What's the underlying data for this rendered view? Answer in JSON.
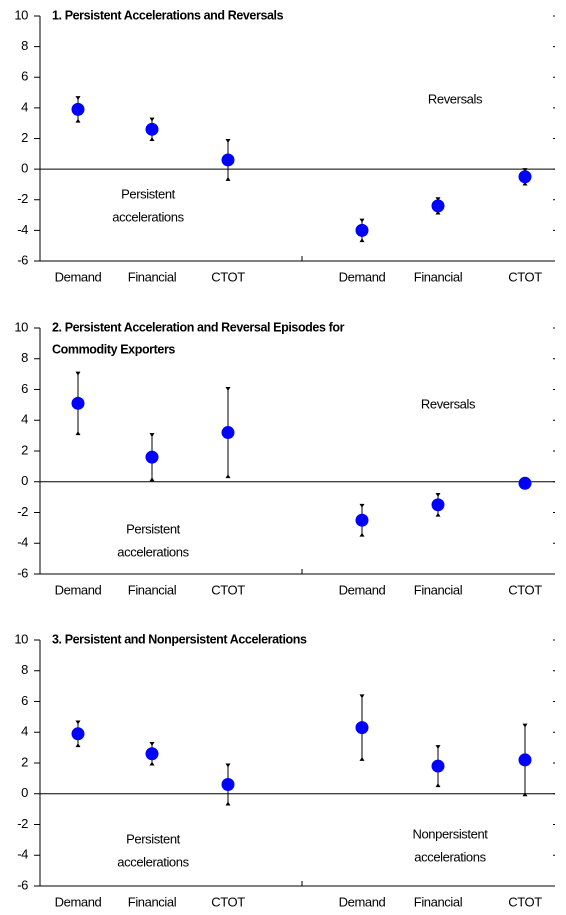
{
  "chart_data": [
    {
      "type": "errorbar",
      "title": [
        "1. Persistent Accelerations and Reversals"
      ],
      "categories": [
        "Demand",
        "Financial",
        "CTOT",
        "Demand",
        "Financial",
        "CTOT"
      ],
      "values": [
        3.9,
        2.6,
        0.6,
        -4.0,
        -2.4,
        -0.5
      ],
      "errors": [
        0.8,
        0.7,
        1.3,
        0.7,
        0.5,
        0.5
      ],
      "color": "#0000ff",
      "ylim": [
        -6,
        10
      ],
      "yticks": [
        -6,
        -4,
        -2,
        0,
        2,
        4,
        6,
        8,
        10
      ],
      "annotations": [
        [
          "Reversals"
        ],
        [
          "Persistent",
          "accelerations"
        ]
      ]
    },
    {
      "type": "errorbar",
      "title": [
        "2. Persistent Acceleration and Reversal Episodes for",
        "Commodity Exporters"
      ],
      "categories": [
        "Demand",
        "Financial",
        "CTOT",
        "Demand",
        "Financial",
        "CTOT"
      ],
      "values": [
        5.1,
        1.6,
        3.2,
        -2.5,
        -1.5,
        -0.1
      ],
      "errors": [
        2.0,
        1.5,
        2.9,
        1.0,
        0.7,
        0.1
      ],
      "color": "#0000ff",
      "ylim": [
        -6,
        10
      ],
      "yticks": [
        -6,
        -4,
        -2,
        0,
        2,
        4,
        6,
        8,
        10
      ],
      "annotations": [
        [
          "Reversals"
        ],
        [
          "Persistent",
          "accelerations"
        ]
      ]
    },
    {
      "type": "errorbar",
      "title": [
        "3. Persistent and Nonpersistent Accelerations"
      ],
      "categories": [
        "Demand",
        "Financial",
        "CTOT",
        "Demand",
        "Financial",
        "CTOT"
      ],
      "values": [
        3.9,
        2.6,
        0.6,
        4.3,
        1.8,
        2.2
      ],
      "errors": [
        0.8,
        0.7,
        1.3,
        2.1,
        1.3,
        2.3
      ],
      "color": "#0000ff",
      "ylim": [
        -6,
        10
      ],
      "yticks": [
        -6,
        -4,
        -2,
        0,
        2,
        4,
        6,
        8,
        10
      ],
      "annotations": [
        [
          "Persistent",
          "accelerations"
        ],
        [
          "Nonpersistent",
          "accelerations"
        ]
      ]
    }
  ]
}
